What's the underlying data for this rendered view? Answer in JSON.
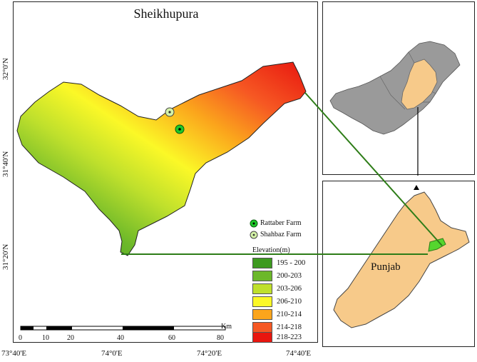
{
  "map": {
    "title": "Sheikhupura",
    "lat_labels": [
      "32°0'N",
      "31°40'N",
      "31°20'N"
    ],
    "lon_labels": [
      "73°40'E",
      "74°0'E",
      "74°20'E",
      "74°40'E"
    ]
  },
  "farms": [
    {
      "name": "Rattaber Farm",
      "marker_color": "#1ec82a"
    },
    {
      "name": "Shahbaz Farm",
      "marker_color": "#d4f2a8"
    }
  ],
  "legend": {
    "title": "Elevation(m)",
    "classes": [
      {
        "range": "195 - 200",
        "color": "#3d9a1f"
      },
      {
        "range": "200-203",
        "color": "#6cb82a"
      },
      {
        "range": "203-206",
        "color": "#bfe02c"
      },
      {
        "range": "206-210",
        "color": "#fbf827"
      },
      {
        "range": "210-214",
        "color": "#fba51c"
      },
      {
        "range": "214-218",
        "color": "#f65823"
      },
      {
        "range": "218-223",
        "color": "#e8160f"
      }
    ]
  },
  "scale_bar": {
    "ticks": [
      "0",
      "10",
      "20",
      "40",
      "60",
      "80"
    ],
    "unit": "Km"
  },
  "inset": {
    "region_label": "Punjab",
    "country_color": "#9a9a9a",
    "province_color": "#f7ca8a",
    "district_color": "#55d62e",
    "connector_color": "#2e7d18"
  }
}
